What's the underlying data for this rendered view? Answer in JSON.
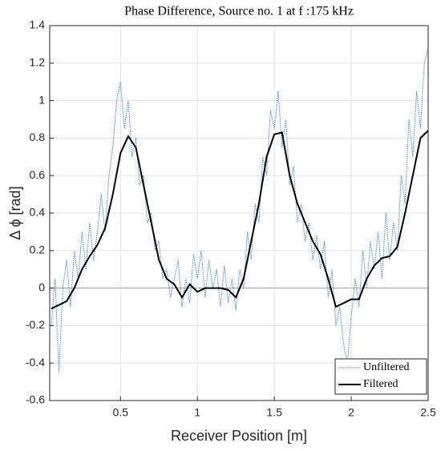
{
  "chart_data": {
    "type": "line",
    "title": "Phase Difference, Source no. 1 at f :175 kHz",
    "xlabel": "Receiver Position [m]",
    "ylabel": "Δ ϕ [rad]",
    "xlim": [
      0.04,
      2.5
    ],
    "ylim": [
      -0.6,
      1.4
    ],
    "xticks": [
      0.5,
      1,
      1.5,
      2,
      2.5
    ],
    "yticks": [
      -0.6,
      -0.4,
      -0.2,
      0,
      0.2,
      0.4,
      0.6,
      0.8,
      1,
      1.2,
      1.4
    ],
    "grid": true,
    "legend": "lower right",
    "series": [
      {
        "name": "Unfiltered",
        "color": "#4a90d0",
        "style": "dotted",
        "x": [
          0.05,
          0.075,
          0.1,
          0.125,
          0.15,
          0.175,
          0.2,
          0.225,
          0.25,
          0.275,
          0.3,
          0.325,
          0.35,
          0.375,
          0.4,
          0.425,
          0.45,
          0.475,
          0.5,
          0.525,
          0.55,
          0.575,
          0.6,
          0.625,
          0.65,
          0.675,
          0.7,
          0.725,
          0.75,
          0.775,
          0.8,
          0.825,
          0.85,
          0.875,
          0.9,
          0.925,
          0.95,
          0.975,
          1.0,
          1.025,
          1.05,
          1.075,
          1.1,
          1.125,
          1.15,
          1.175,
          1.2,
          1.225,
          1.25,
          1.275,
          1.3,
          1.325,
          1.35,
          1.375,
          1.4,
          1.425,
          1.45,
          1.475,
          1.5,
          1.525,
          1.55,
          1.575,
          1.6,
          1.625,
          1.65,
          1.675,
          1.7,
          1.725,
          1.75,
          1.775,
          1.8,
          1.825,
          1.85,
          1.875,
          1.9,
          1.925,
          1.95,
          1.975,
          2.0,
          2.025,
          2.05,
          2.075,
          2.1,
          2.125,
          2.15,
          2.175,
          2.2,
          2.225,
          2.25,
          2.275,
          2.3,
          2.325,
          2.35,
          2.375,
          2.4,
          2.425,
          2.45,
          2.475,
          2.5
        ],
        "values": [
          -0.2,
          0.05,
          -0.45,
          0.0,
          0.15,
          -0.1,
          0.2,
          0.05,
          0.3,
          0.1,
          0.35,
          0.15,
          0.3,
          0.5,
          0.3,
          0.6,
          0.75,
          1.0,
          1.1,
          0.85,
          1.0,
          0.7,
          0.8,
          0.55,
          0.6,
          0.35,
          0.4,
          0.2,
          0.25,
          0.05,
          0.1,
          -0.05,
          0.05,
          0.15,
          -0.1,
          0.05,
          -0.08,
          0.18,
          0.05,
          0.2,
          -0.05,
          0.15,
          0.0,
          0.1,
          -0.1,
          0.12,
          -0.08,
          0.05,
          -0.12,
          0.1,
          0.0,
          0.3,
          0.15,
          0.45,
          0.35,
          0.7,
          0.6,
          0.95,
          0.85,
          1.05,
          0.75,
          0.9,
          0.55,
          0.65,
          0.35,
          0.45,
          0.25,
          0.35,
          0.15,
          0.28,
          0.1,
          0.25,
          -0.05,
          0.1,
          -0.2,
          -0.1,
          -0.3,
          -0.4,
          -0.15,
          0.05,
          -0.1,
          0.2,
          0.0,
          0.25,
          0.1,
          0.3,
          0.05,
          0.4,
          0.15,
          0.35,
          0.2,
          0.6,
          0.45,
          0.9,
          0.7,
          1.05,
          0.85,
          1.2,
          1.28
        ]
      },
      {
        "name": "Filtered",
        "color": "#000000",
        "style": "solid",
        "x": [
          0.05,
          0.1,
          0.15,
          0.2,
          0.25,
          0.3,
          0.35,
          0.4,
          0.45,
          0.5,
          0.55,
          0.6,
          0.65,
          0.7,
          0.75,
          0.8,
          0.85,
          0.9,
          0.95,
          1.0,
          1.05,
          1.1,
          1.15,
          1.2,
          1.25,
          1.3,
          1.35,
          1.4,
          1.45,
          1.5,
          1.55,
          1.6,
          1.65,
          1.7,
          1.75,
          1.8,
          1.85,
          1.9,
          1.95,
          2.0,
          2.05,
          2.1,
          2.15,
          2.2,
          2.25,
          2.3,
          2.35,
          2.4,
          2.45,
          2.5
        ],
        "values": [
          -0.11,
          -0.09,
          -0.07,
          0.0,
          0.1,
          0.17,
          0.23,
          0.32,
          0.5,
          0.72,
          0.81,
          0.75,
          0.55,
          0.35,
          0.15,
          0.05,
          0.02,
          -0.05,
          0.02,
          -0.02,
          0.0,
          0.0,
          0.0,
          -0.01,
          -0.05,
          0.05,
          0.25,
          0.45,
          0.7,
          0.82,
          0.83,
          0.6,
          0.45,
          0.35,
          0.25,
          0.18,
          0.05,
          -0.1,
          -0.08,
          -0.06,
          -0.06,
          0.05,
          0.12,
          0.16,
          0.17,
          0.22,
          0.4,
          0.6,
          0.8,
          0.84
        ]
      }
    ]
  }
}
